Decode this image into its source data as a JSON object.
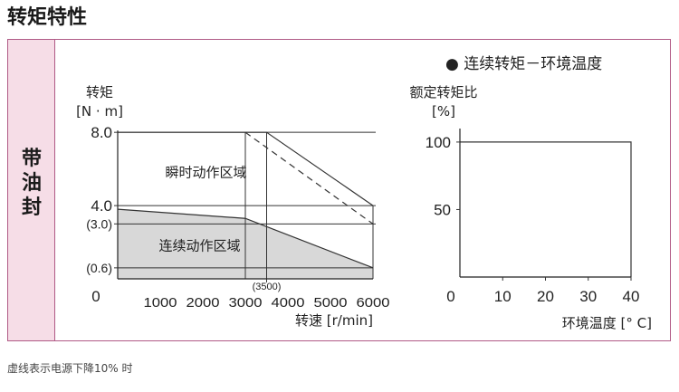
{
  "page": {
    "heading": "转矩特性",
    "side_label": [
      "带",
      "油",
      "封"
    ],
    "footnote": "虚线表示电源下降10% 时"
  },
  "colors": {
    "frame_border": "#b05a86",
    "side_bg": "#f6dde7",
    "region_fill": "#d8d8d8",
    "line": "#333333"
  },
  "chart_data": [
    {
      "type": "line",
      "ylabel": [
        "转矩",
        "[N · m]"
      ],
      "xlabel": "转速 [r/min]",
      "xlim": [
        0,
        6000
      ],
      "ylim": [
        0,
        8.8
      ],
      "x_ticks": [
        0,
        1000,
        2000,
        3000,
        4000,
        5000,
        6000
      ],
      "y_ticks": [
        {
          "value": 8.0,
          "label": "8.0"
        },
        {
          "value": 4.0,
          "label": "4.0"
        },
        {
          "value": 3.0,
          "label": "(3.0)"
        },
        {
          "value": 0.6,
          "label": "(0.6)"
        }
      ],
      "x_annotation": {
        "value": 3500,
        "label": "(3500)"
      },
      "regions": [
        {
          "name": "瞬时动作区域",
          "x": 2500,
          "y": 5.8
        },
        {
          "name": "连续动作区域",
          "x": 1500,
          "y": 1.8
        }
      ],
      "series": [
        {
          "style": "solid",
          "x": [
            0,
            3000,
            3500,
            6000
          ],
          "y": [
            8.0,
            8.0,
            8.0,
            4.0
          ]
        },
        {
          "style": "dashed",
          "x": [
            3000,
            6000
          ],
          "y": [
            8.0,
            3.0
          ]
        },
        {
          "style": "solid",
          "x": [
            0,
            3000,
            6000
          ],
          "y": [
            3.8,
            3.3,
            0.6
          ]
        }
      ],
      "continuous_region": {
        "x": [
          0,
          3000,
          6000
        ],
        "y": [
          3.8,
          3.3,
          0.6
        ]
      }
    },
    {
      "type": "line",
      "title": "● 连续转矩－环境温度",
      "ylabel": [
        "额定转矩比",
        "[%]"
      ],
      "xlabel": "环境温度 [° C]",
      "xlim": [
        0,
        40
      ],
      "ylim": [
        0,
        110
      ],
      "x_ticks": [
        0,
        10,
        20,
        30,
        40
      ],
      "y_ticks": [
        {
          "value": 100,
          "label": "100"
        },
        {
          "value": 50,
          "label": "50"
        }
      ],
      "series": [
        {
          "style": "solid",
          "x": [
            0,
            40,
            40
          ],
          "y": [
            100,
            100,
            0
          ]
        }
      ]
    }
  ]
}
